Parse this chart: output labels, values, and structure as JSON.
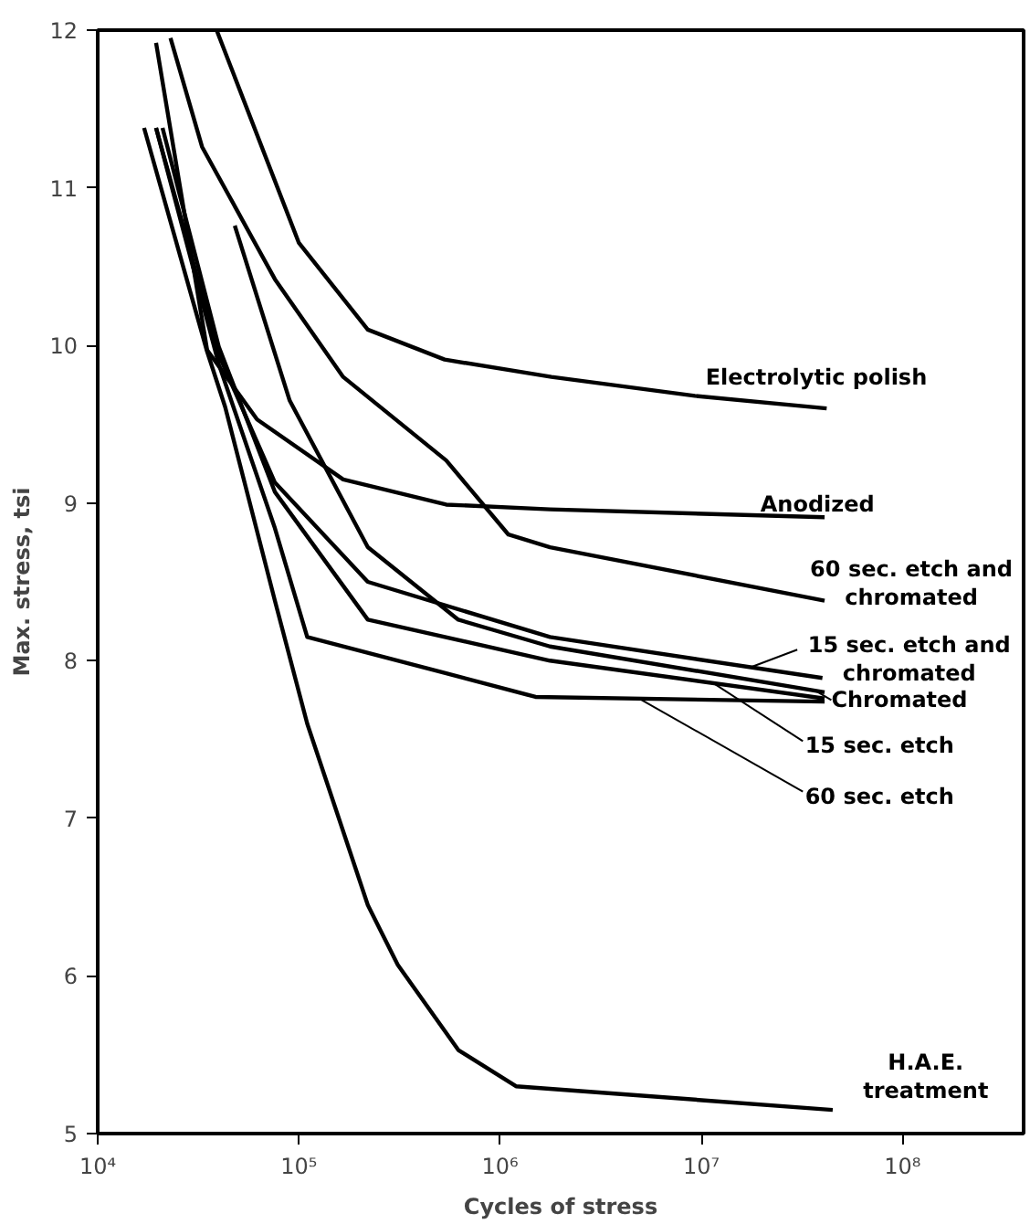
{
  "chart_data": {
    "type": "line",
    "xlabel": "Cycles of stress",
    "ylabel": "Max. stress, tsi",
    "log": "x",
    "xlim": [
      10000,
      400000000
    ],
    "ylim": [
      5,
      12
    ],
    "xticks": [
      {
        "value": 10000,
        "label": "10⁴"
      },
      {
        "value": 100000,
        "label": "10⁵"
      },
      {
        "value": 1000000,
        "label": "10⁶"
      },
      {
        "value": 10000000,
        "label": "10⁷"
      },
      {
        "value": 100000000,
        "label": "10⁸"
      }
    ],
    "yticks": [
      5,
      6,
      7,
      8,
      9,
      10,
      11,
      12
    ],
    "grid": false,
    "marker": "none",
    "line_style": "solid",
    "series": [
      {
        "name": "Electrolytic polish",
        "color": "#000000",
        "x": [
          39000,
          100000,
          220000,
          530000,
          1800000,
          9300000,
          42000000
        ],
        "values": [
          12,
          10.65,
          10.1,
          9.91,
          9.8,
          9.68,
          9.6
        ]
      },
      {
        "name": "Anodized",
        "color": "#000000",
        "x": [
          19500,
          35000,
          62000,
          166000,
          540000,
          1770000,
          41000000
        ],
        "values": [
          11.92,
          9.97,
          9.53,
          9.15,
          8.99,
          8.96,
          8.91
        ]
      },
      {
        "name": "60 sec. etch and chromated",
        "color": "#000000",
        "x": [
          23000,
          33000,
          76000,
          166000,
          540000,
          1100000,
          1770000,
          41000000
        ],
        "values": [
          11.95,
          11.26,
          10.42,
          9.8,
          9.27,
          8.8,
          8.72,
          8.38
        ]
      },
      {
        "name": "15 sec. etch and chromated",
        "color": "#000000",
        "x": [
          19500,
          40000,
          76000,
          220000,
          1770000,
          40000000
        ],
        "values": [
          11.38,
          9.94,
          9.13,
          8.5,
          8.15,
          7.89
        ]
      },
      {
        "name": "Chromated",
        "color": "#000000",
        "x": [
          48000,
          90000,
          220000,
          620000,
          1770000,
          41000000
        ],
        "values": [
          10.76,
          9.65,
          8.72,
          8.26,
          8.09,
          7.8
        ]
      },
      {
        "name": "15 sec. etch",
        "color": "#000000",
        "x": [
          21000,
          40000,
          76000,
          220000,
          1770000,
          41000000
        ],
        "values": [
          11.38,
          9.99,
          9.07,
          8.26,
          8.0,
          7.76
        ]
      },
      {
        "name": "60 sec. etch",
        "color": "#000000",
        "x": [
          19500,
          40000,
          76000,
          110000,
          540000,
          1500000,
          41000000
        ],
        "values": [
          11.38,
          9.88,
          8.84,
          8.15,
          7.92,
          7.77,
          7.74
        ]
      },
      {
        "name": "H.A.E. treatment",
        "color": "#000000",
        "x": [
          17000,
          35000,
          43000,
          76000,
          110000,
          220000,
          310000,
          620000,
          1200000,
          45000000
        ],
        "values": [
          11.38,
          9.96,
          9.61,
          8.38,
          7.6,
          6.45,
          6.07,
          5.53,
          5.3,
          5.15
        ]
      }
    ]
  }
}
